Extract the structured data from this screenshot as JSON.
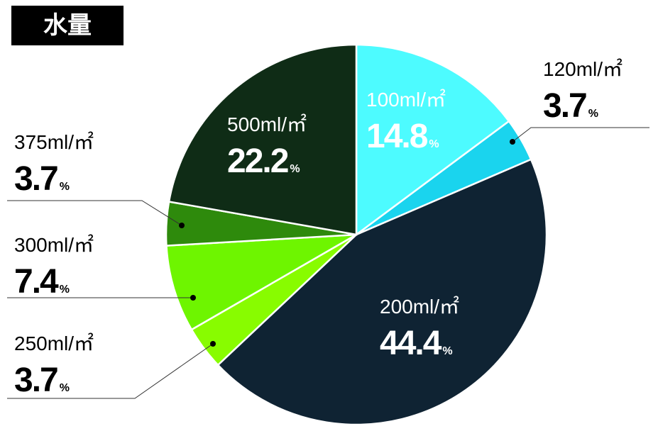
{
  "chart_data": {
    "type": "pie",
    "title": "水量",
    "categories": [
      "100ml/㎡",
      "120ml/㎡",
      "200ml/㎡",
      "250ml/㎡",
      "300ml/㎡",
      "375ml/㎡",
      "500ml/㎡"
    ],
    "values": [
      14.8,
      3.7,
      44.4,
      3.7,
      7.4,
      3.7,
      22.2
    ],
    "colors": [
      "#4dfbff",
      "#1ad4ee",
      "#0f2333",
      "#88fc00",
      "#6ef500",
      "#2e8a0c",
      "#0f2c16"
    ],
    "value_suffix": "%"
  }
}
